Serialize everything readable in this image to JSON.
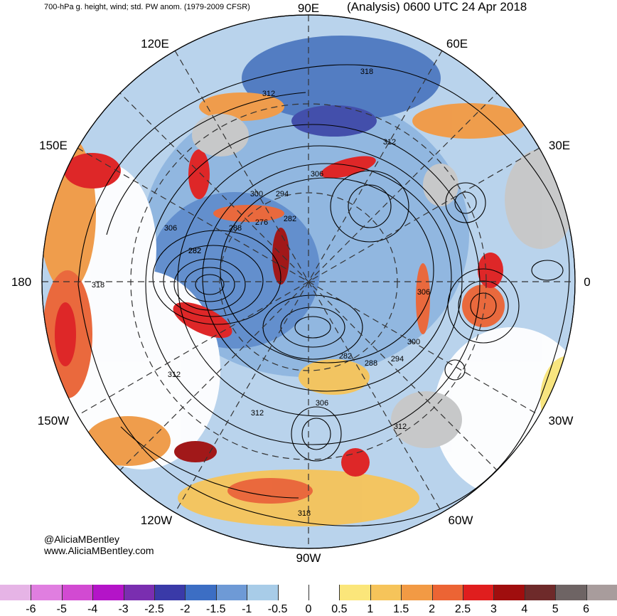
{
  "header": {
    "left_title": "700-hPa g. height, wind; std. PW anom. (1979-2009 CFSR)",
    "right_title": "(Analysis) 0600 UTC 24 Apr 2018"
  },
  "credits": {
    "handle": "@AliciaMBentley",
    "website": "www.AliciaMBentley.com"
  },
  "longitude_labels": [
    {
      "id": "90e",
      "text": "90E"
    },
    {
      "id": "60e",
      "text": "60E"
    },
    {
      "id": "120e",
      "text": "120E"
    },
    {
      "id": "150e",
      "text": "150E"
    },
    {
      "id": "30e",
      "text": "30E"
    },
    {
      "id": "180",
      "text": "180"
    },
    {
      "id": "0",
      "text": "0"
    },
    {
      "id": "150w",
      "text": "150W"
    },
    {
      "id": "30w",
      "text": "30W"
    },
    {
      "id": "120w",
      "text": "120W"
    },
    {
      "id": "60w",
      "text": "60W"
    },
    {
      "id": "90w",
      "text": "90W"
    }
  ],
  "contour_labels": [
    "318",
    "312",
    "312",
    "306",
    "300",
    "294",
    "282",
    "288",
    "276",
    "282",
    "306",
    "282",
    "318",
    "312",
    "306",
    "300",
    "294",
    "288",
    "282",
    "306",
    "312",
    "312",
    "318"
  ],
  "colorbar": {
    "colors": [
      "#e6b4e6",
      "#e07ee0",
      "#d24ad2",
      "#b414c8",
      "#7a2eb0",
      "#3a3aa8",
      "#3c6ec4",
      "#6e9ad6",
      "#a8cce8",
      "#ffffff",
      "#ffffff",
      "#fbe67a",
      "#f6c45a",
      "#f29a44",
      "#ec6434",
      "#e01e1e",
      "#a00e0e",
      "#6e2a2a",
      "#6e6464",
      "#a89c9c"
    ],
    "tick_labels": [
      "-6",
      "-5",
      "-4",
      "-3",
      "-2.5",
      "-2",
      "-1.5",
      "-1",
      "-0.5",
      "0",
      "0.5",
      "1",
      "1.5",
      "2",
      "2.5",
      "3",
      "4",
      "5",
      "6"
    ]
  }
}
